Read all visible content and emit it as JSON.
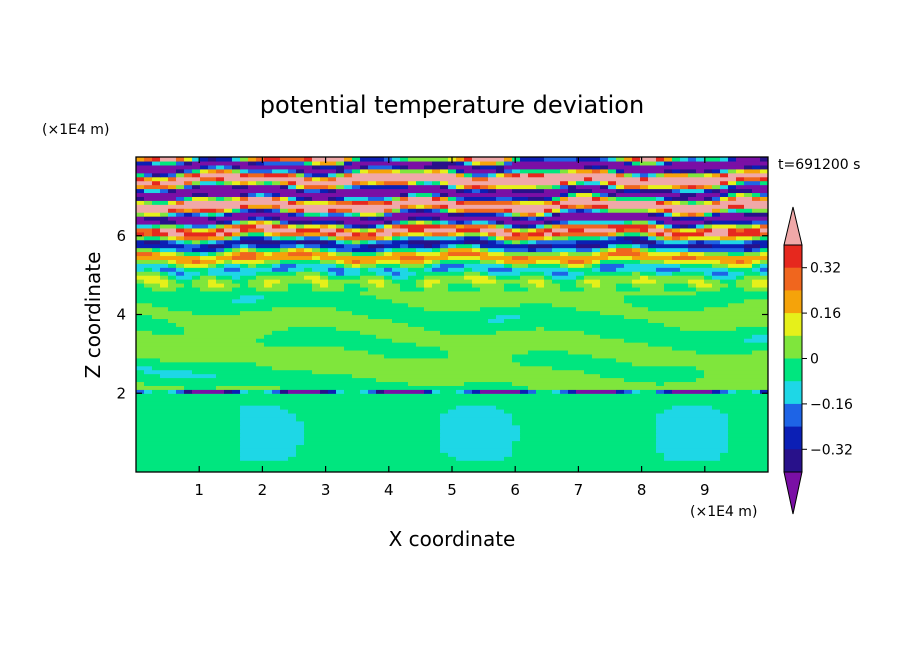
{
  "chart_data": {
    "type": "heatmap",
    "title": "potential temperature deviation",
    "xlabel": "X coordinate",
    "ylabel": "Z coordinate",
    "x_unit": "(×1E4 m)",
    "y_unit": "(×1E4 m)",
    "time_label": "t=691200 s",
    "xlim": [
      0,
      10
    ],
    "ylim": [
      0,
      8
    ],
    "x_ticks": [
      "1",
      "2",
      "3",
      "4",
      "5",
      "6",
      "7",
      "8",
      "9"
    ],
    "y_ticks": [
      "2",
      "4",
      "6"
    ],
    "colorbar": {
      "levels": [
        -0.48,
        -0.4,
        -0.32,
        -0.24,
        -0.16,
        -0.08,
        0,
        0.08,
        0.16,
        0.24,
        0.32,
        0.4,
        0.48
      ],
      "tick_labels": [
        "0.32",
        "0.16",
        "0",
        "−0.16",
        "−0.32"
      ],
      "colors": [
        "#7a0fa5",
        "#28118a",
        "#0b1fb5",
        "#1e64e6",
        "#1ed7e6",
        "#00e67f",
        "#7fe63c",
        "#e6f01a",
        "#f5a30a",
        "#f0661e",
        "#e6281e",
        "#f0a8a8"
      ]
    },
    "bands": [
      {
        "z": [
          0.0,
          2.0
        ],
        "level": "#7fe63c"
      },
      {
        "z": [
          2.0,
          2.1
        ],
        "level": "#28118a"
      },
      {
        "z": [
          2.1,
          4.8
        ],
        "level": "#7fe63c"
      },
      {
        "z": [
          4.8,
          6.4
        ],
        "level": "mixed"
      },
      {
        "z": [
          6.4,
          8.0
        ],
        "level": "mixed-strong"
      }
    ]
  }
}
